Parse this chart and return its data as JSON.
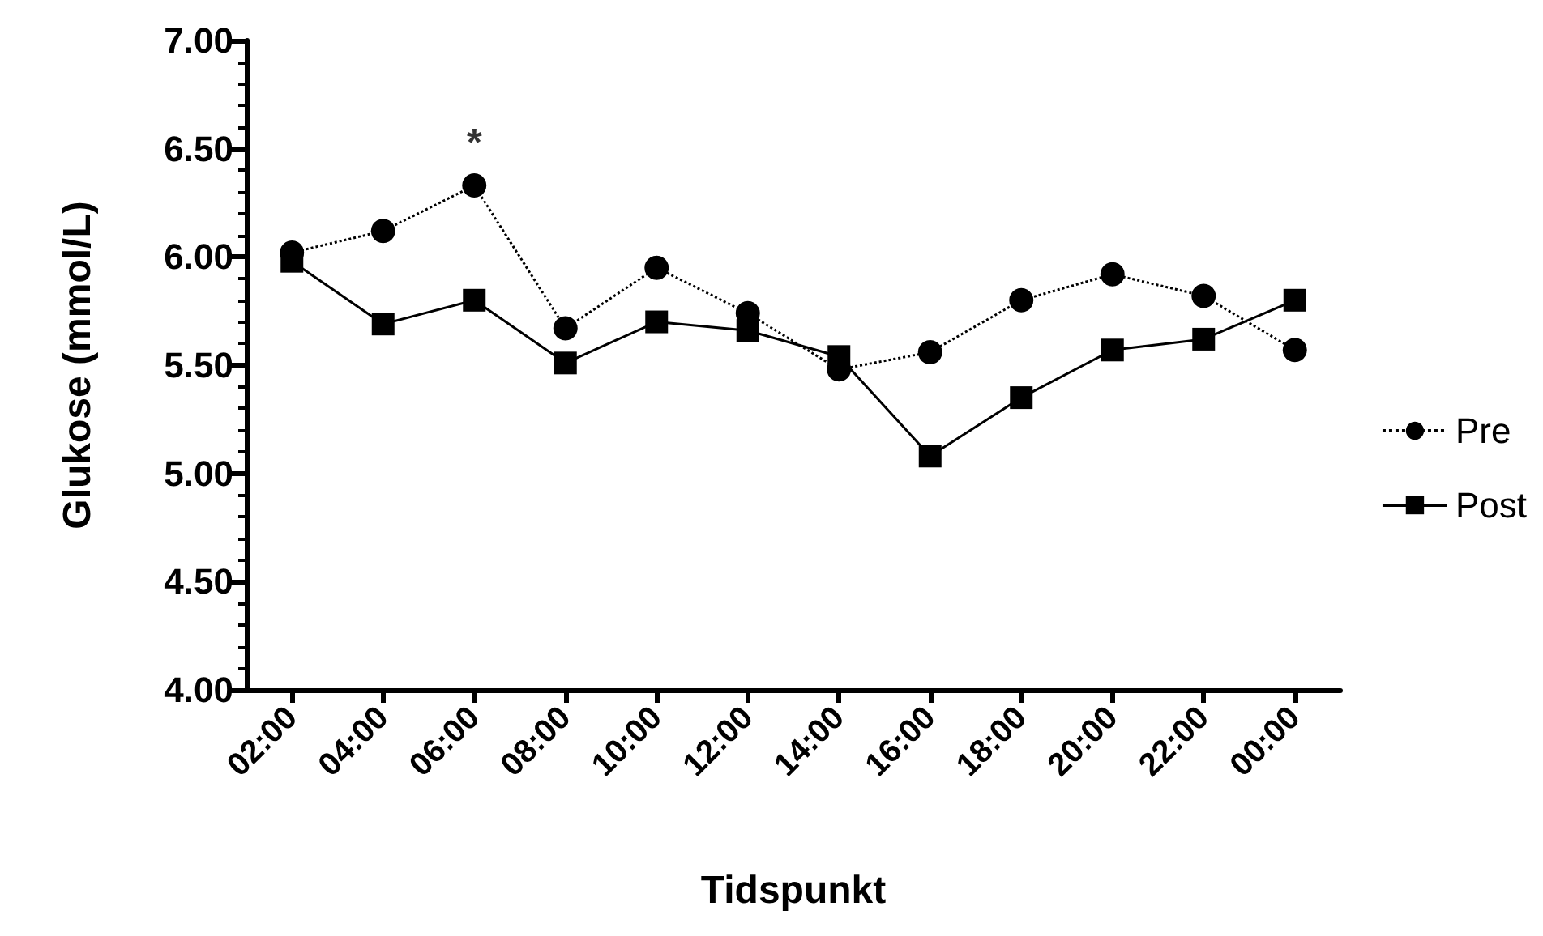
{
  "chart_data": {
    "type": "line",
    "xlabel": "Tidspunkt",
    "ylabel": "Glukose (mmol/L)",
    "categories": [
      "02:00",
      "04:00",
      "06:00",
      "08:00",
      "10:00",
      "12:00",
      "14:00",
      "16:00",
      "18:00",
      "20:00",
      "22:00",
      "00:00"
    ],
    "series": [
      {
        "name": "Pre",
        "color": "#000000",
        "marker": "circle",
        "line_style": "dotted",
        "values": [
          6.02,
          6.12,
          6.33,
          5.67,
          5.95,
          5.74,
          5.48,
          5.56,
          5.8,
          5.92,
          5.82,
          5.57
        ]
      },
      {
        "name": "Post",
        "color": "#000000",
        "marker": "square",
        "line_style": "solid",
        "values": [
          5.98,
          5.69,
          5.8,
          5.51,
          5.7,
          5.66,
          5.54,
          5.08,
          5.35,
          5.57,
          5.62,
          5.8
        ]
      }
    ],
    "ylim": [
      4,
      7
    ],
    "yticks": [
      {
        "value": 4,
        "label": "4.00"
      },
      {
        "value": 4.5,
        "label": "4.50"
      },
      {
        "value": 5,
        "label": "5.00"
      },
      {
        "value": 5.5,
        "label": "5.50"
      },
      {
        "value": 6,
        "label": "6.00"
      },
      {
        "value": 6.5,
        "label": "6.50"
      },
      {
        "value": 7,
        "label": "7.00"
      }
    ],
    "annotations": [
      {
        "text": "*",
        "x": "06:00",
        "y": 6.33
      }
    ],
    "grid": false,
    "legend": "right"
  }
}
